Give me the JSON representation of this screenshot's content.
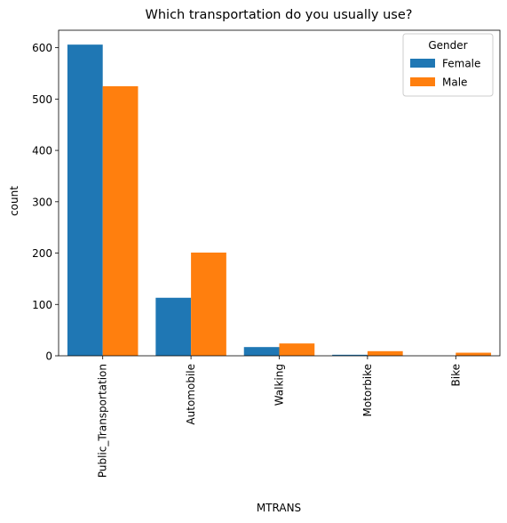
{
  "chart_data": {
    "type": "bar",
    "title": "Which transportation do you usually use?",
    "xlabel": "MTRANS",
    "ylabel": "count",
    "categories": [
      "Public_Transportation",
      "Automobile",
      "Walking",
      "Motorbike",
      "Bike"
    ],
    "series": [
      {
        "name": "Female",
        "color": "#1f77b4",
        "values": [
          606,
          113,
          17,
          2,
          0
        ]
      },
      {
        "name": "Male",
        "color": "#ff7f0e",
        "values": [
          525,
          201,
          24,
          9,
          6
        ]
      }
    ],
    "ylim": [
      0,
      634
    ],
    "yticks": [
      0,
      100,
      200,
      300,
      400,
      500,
      600
    ],
    "legend": {
      "title": "Gender",
      "position": "top-right"
    },
    "grid": false
  }
}
